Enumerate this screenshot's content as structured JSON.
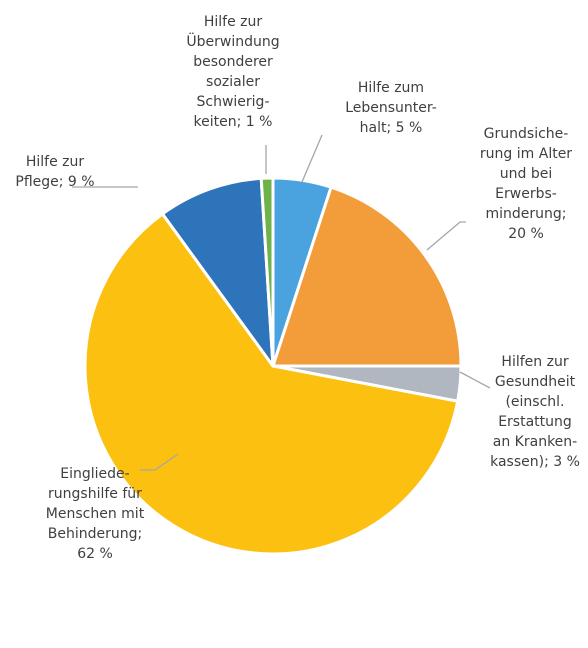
{
  "chart_data": {
    "type": "pie",
    "title": "",
    "start": "12 o'clock, clockwise",
    "slices": [
      {
        "label": "Hilfe zum Lebensunterhalt; 5 %",
        "value": 5,
        "color": "#4aa3df",
        "label_lines": [
          "Hilfe zum",
          "Lebensunter-",
          "halt; 5 %"
        ]
      },
      {
        "label": "Grundsicherung im Alter und bei Erwerbsminderung; 20 %",
        "value": 20,
        "color": "#f39c3a",
        "label_lines": [
          "Grundsiche-",
          "rung im Alter",
          "und bei",
          "Erwerbs-",
          "minderung;",
          "20 %"
        ]
      },
      {
        "label": "Hilfen zur Gesundheit (einschl. Erstattung an Krankenkassen); 3 %",
        "value": 3,
        "color": "#b0b7c0",
        "label_lines": [
          "Hilfen zur",
          "Gesundheit",
          "(einschl.",
          "Erstattung",
          "an Kranken-",
          "kassen); 3 %"
        ]
      },
      {
        "label": "Eingliederungshilfe für Menschen mit Behinderung; 62 %",
        "value": 62,
        "color": "#fcc010",
        "label_lines": [
          "Eingliede-",
          "rungshilfe für",
          "Menschen mit",
          "Behinderung;",
          "62 %"
        ]
      },
      {
        "label": "Hilfe zur Pflege; 9 %",
        "value": 9,
        "color": "#2d74bb",
        "label_lines": [
          "Hilfe zur",
          "Pflege; 9 %"
        ]
      },
      {
        "label": "Hilfe zur Überwindung besonderer sozialer Schwierigkeiten; 1 %",
        "value": 1,
        "color": "#6fb24a",
        "label_lines": [
          "Hilfe zur",
          "Überwindung",
          "besonderer",
          "sozialer",
          "Schwierig-",
          "keiten; 1 %"
        ]
      }
    ]
  }
}
